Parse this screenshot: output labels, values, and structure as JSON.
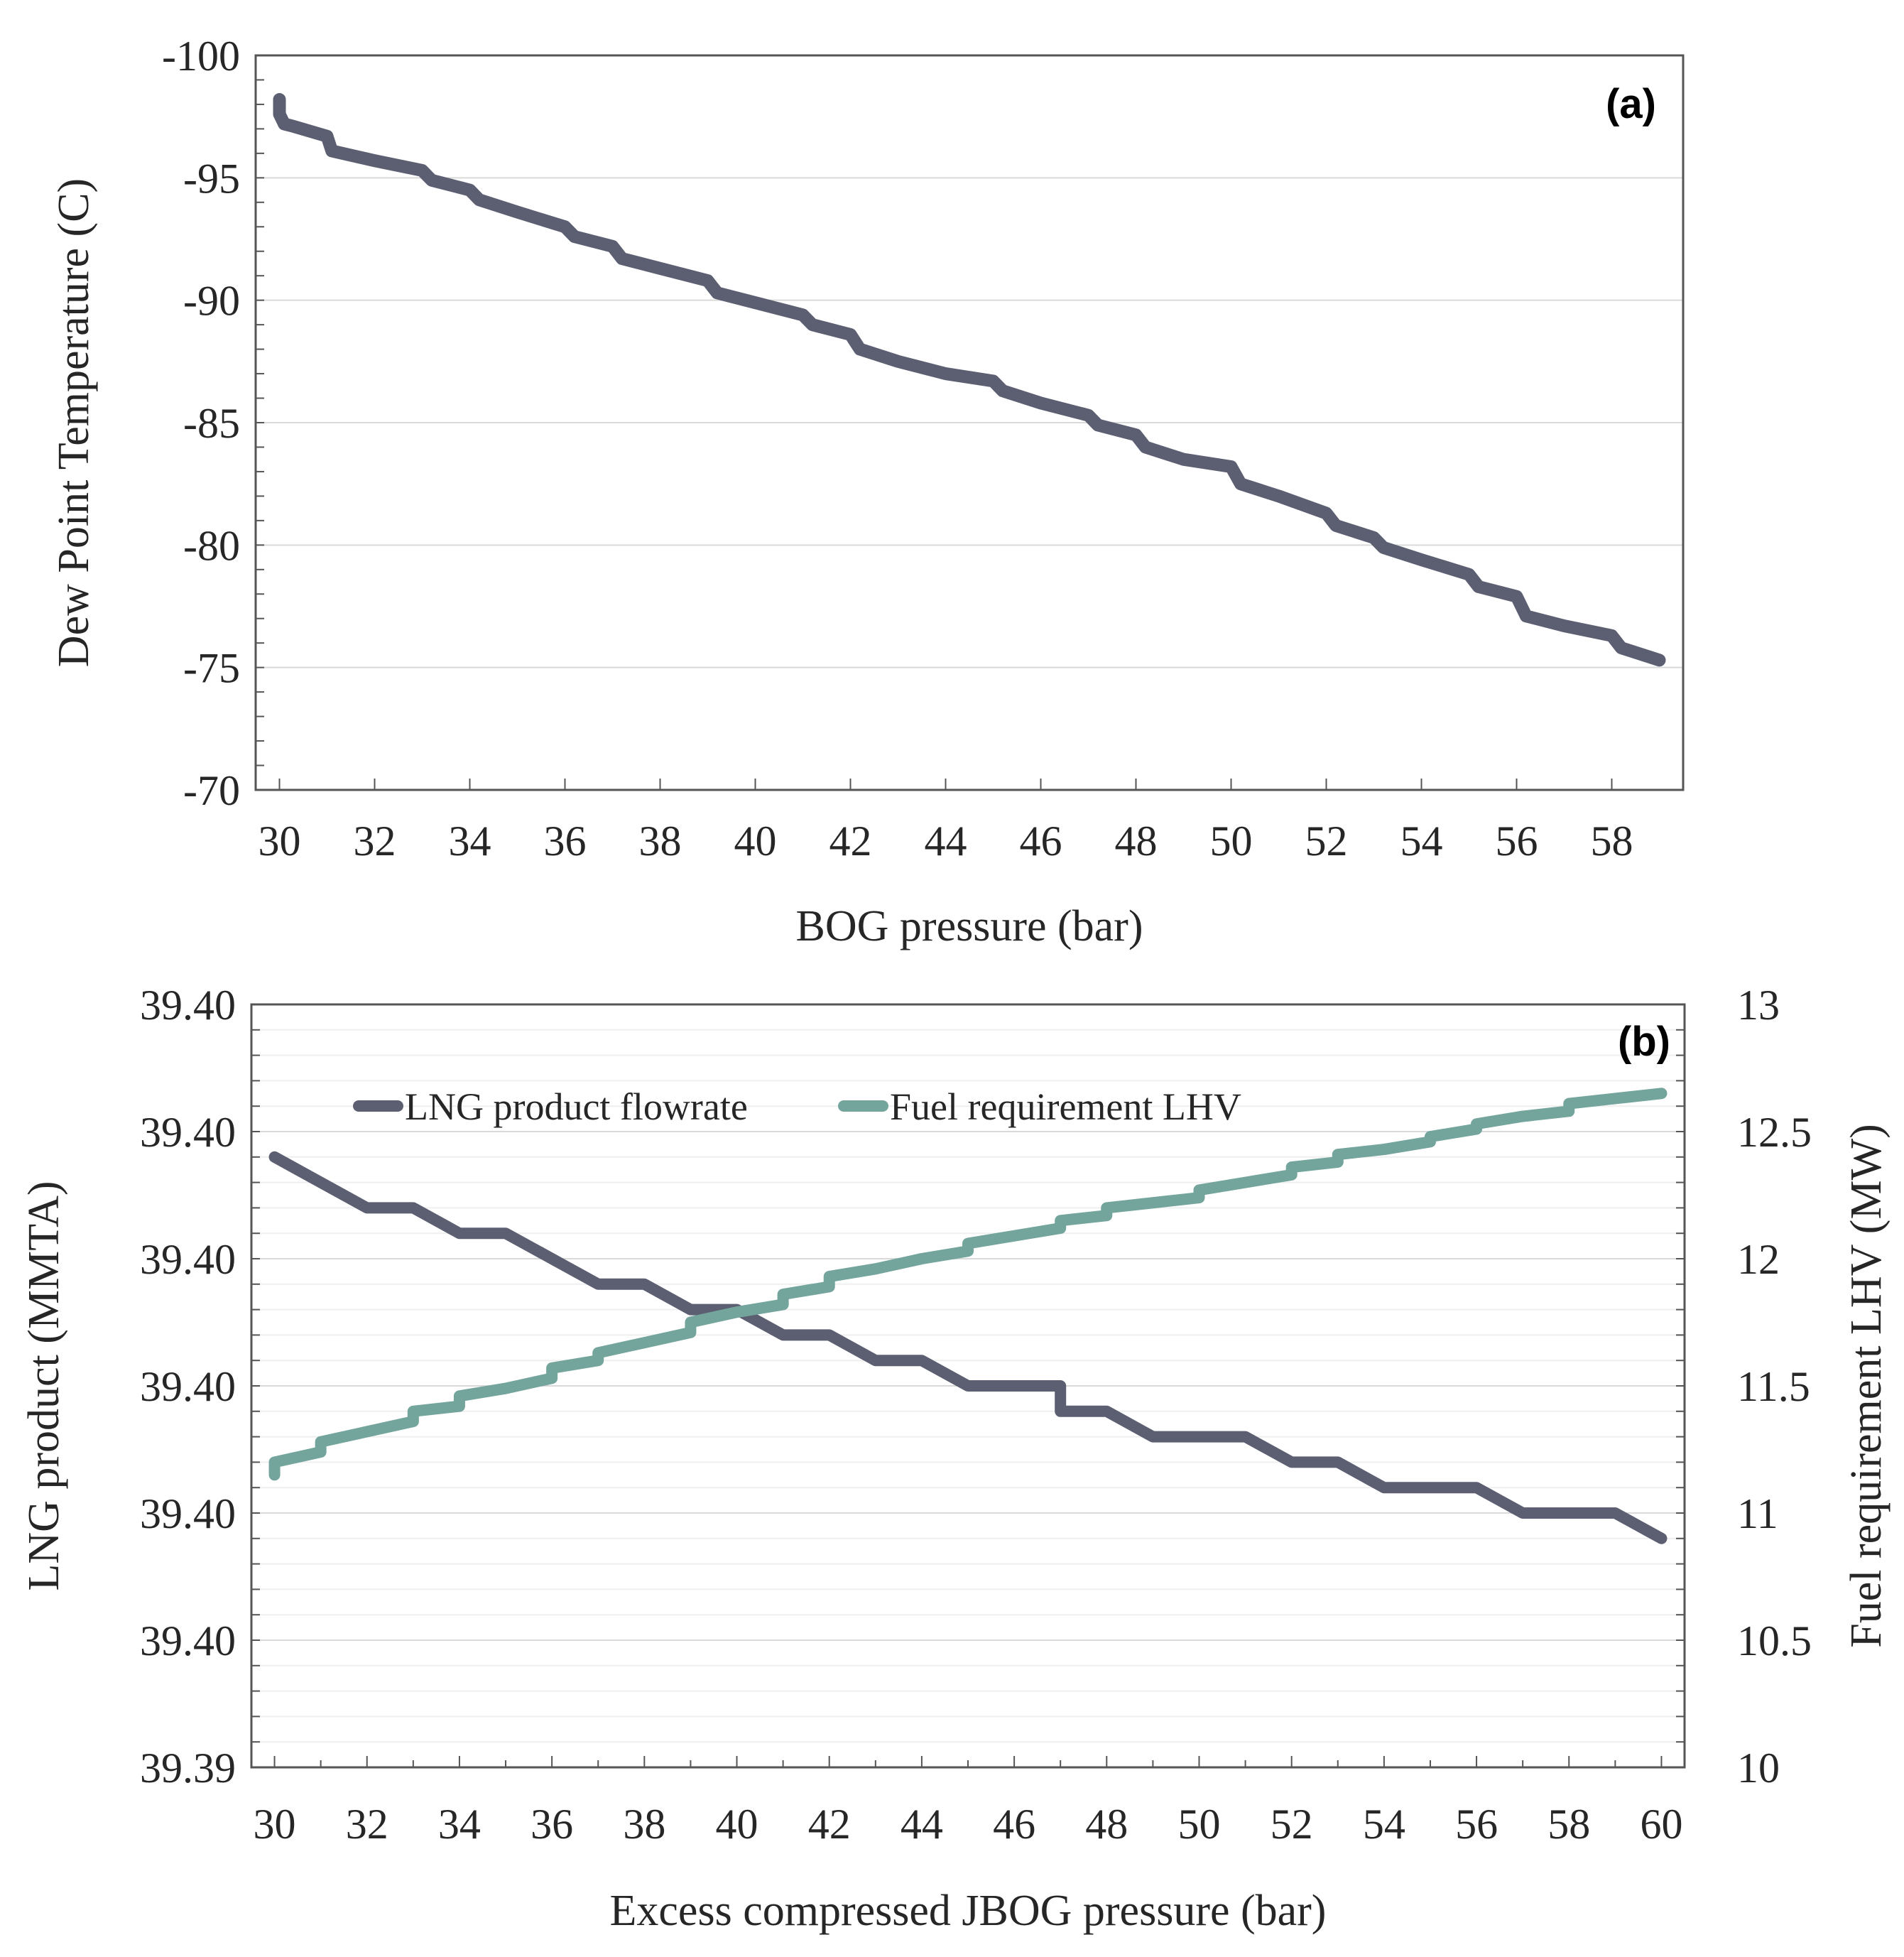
{
  "colors": {
    "series_dark": "#5c5f72",
    "series_teal": "#73a59c",
    "axis": "#555555",
    "grid": "#d9d9d9",
    "grid_minor": "#efefef"
  },
  "chart_data": [
    {
      "type": "line",
      "panel_label": "(a)",
      "xlabel": "BOG pressure (bar)",
      "ylabel": "Dew Point Temperature (C)",
      "xlim": [
        29.5,
        59.5
      ],
      "ylim": [
        -100,
        -70
      ],
      "y_reversed": true,
      "xticks": [
        30,
        32,
        34,
        36,
        38,
        40,
        42,
        44,
        46,
        48,
        50,
        52,
        54,
        56,
        58
      ],
      "yticks": [
        -100,
        -95,
        -90,
        -85,
        -80,
        -75,
        -70
      ],
      "ytick_labels": [
        "-100",
        "-95",
        "-90",
        "-85",
        "-80",
        "-75",
        "-70"
      ],
      "grid": "horizontal",
      "series": [
        {
          "color": "#5c5f72",
          "x": [
            30.0,
            30.0,
            30.1,
            30.3,
            31.0,
            31.1,
            32.0,
            33.0,
            33.2,
            34.0,
            34.2,
            35.0,
            36.0,
            36.2,
            37.0,
            37.2,
            38.0,
            39.0,
            39.2,
            40.0,
            41.0,
            41.2,
            42.0,
            42.2,
            43.0,
            44.0,
            45.0,
            45.2,
            46.0,
            47.0,
            47.2,
            48.0,
            48.2,
            49.0,
            50.0,
            50.2,
            51.0,
            52.0,
            52.2,
            53.0,
            53.2,
            54.0,
            55.0,
            55.2,
            56.0,
            56.2,
            57.0,
            58.0,
            58.2,
            59.0
          ],
          "values": [
            -98.2,
            -97.6,
            -97.2,
            -97.1,
            -96.7,
            -96.1,
            -95.7,
            -95.3,
            -94.9,
            -94.5,
            -94.1,
            -93.6,
            -93.0,
            -92.6,
            -92.2,
            -91.7,
            -91.3,
            -90.8,
            -90.3,
            -89.9,
            -89.4,
            -89.0,
            -88.6,
            -88.0,
            -87.5,
            -87.0,
            -86.7,
            -86.3,
            -85.8,
            -85.3,
            -84.9,
            -84.5,
            -84.0,
            -83.5,
            -83.2,
            -82.5,
            -82.0,
            -81.3,
            -80.8,
            -80.3,
            -79.9,
            -79.4,
            -78.8,
            -78.3,
            -77.9,
            -77.1,
            -76.7,
            -76.3,
            -75.8,
            -75.3
          ]
        }
      ]
    },
    {
      "type": "line",
      "panel_label": "(b)",
      "xlabel": "Excess compressed JBOG pressure  (bar)",
      "ylabel": "LNG product (MMTA)",
      "y2label": "Fuel requirement LHV (MW)",
      "xlim": [
        29.5,
        60.5
      ],
      "xticks": [
        30,
        32,
        34,
        36,
        38,
        40,
        42,
        44,
        46,
        48,
        50,
        52,
        54,
        56,
        58,
        60
      ],
      "yticks_left_labels": [
        "39.39",
        "39.40",
        "39.40",
        "39.40",
        "39.40",
        "39.40",
        "39.40"
      ],
      "y2lim": [
        10,
        13
      ],
      "y2ticks": [
        10,
        10.5,
        11,
        11.5,
        12,
        12.5,
        13
      ],
      "y2tick_labels": [
        "10",
        "10.5",
        "11",
        "11.5",
        "12",
        "12.5",
        "13"
      ],
      "grid": "horizontal",
      "legend": "top-left",
      "series": [
        {
          "name": "LNG product flowrate",
          "color": "#5c5f72",
          "x": [
            30,
            32,
            33,
            34,
            35,
            37,
            38,
            39,
            40,
            41,
            42,
            43,
            44,
            45,
            47,
            47,
            48,
            49,
            51,
            52,
            53,
            54,
            56,
            57,
            59,
            60
          ],
          "values": [
            12.4,
            12.2,
            12.2,
            12.1,
            12.1,
            11.9,
            11.9,
            11.8,
            11.8,
            11.7,
            11.7,
            11.6,
            11.6,
            11.5,
            11.5,
            11.4,
            11.4,
            11.3,
            11.3,
            11.2,
            11.2,
            11.1,
            11.1,
            11.0,
            11.0,
            10.9
          ]
        },
        {
          "name": "Fuel requirement LHV",
          "color": "#73a59c",
          "x": [
            30,
            30,
            31,
            31,
            32,
            33,
            33,
            34,
            34,
            35,
            36,
            36,
            37,
            37,
            38,
            39,
            39,
            40,
            41,
            41,
            42,
            42,
            43,
            44,
            45,
            45,
            46,
            47,
            47,
            48,
            48,
            49,
            50,
            50,
            51,
            52,
            52,
            53,
            53,
            54,
            55,
            55,
            56,
            56,
            57,
            58,
            58,
            59,
            60
          ],
          "values": [
            11.15,
            11.2,
            11.24,
            11.28,
            11.32,
            11.36,
            11.4,
            11.42,
            11.46,
            11.49,
            11.53,
            11.57,
            11.6,
            11.63,
            11.67,
            11.71,
            11.75,
            11.79,
            11.82,
            11.86,
            11.89,
            11.93,
            11.96,
            12.0,
            12.03,
            12.06,
            12.09,
            12.12,
            12.15,
            12.17,
            12.2,
            12.22,
            12.24,
            12.27,
            12.3,
            12.33,
            12.36,
            12.38,
            12.41,
            12.43,
            12.46,
            12.48,
            12.51,
            12.53,
            12.56,
            12.58,
            12.61,
            12.63,
            12.65
          ]
        }
      ]
    }
  ]
}
